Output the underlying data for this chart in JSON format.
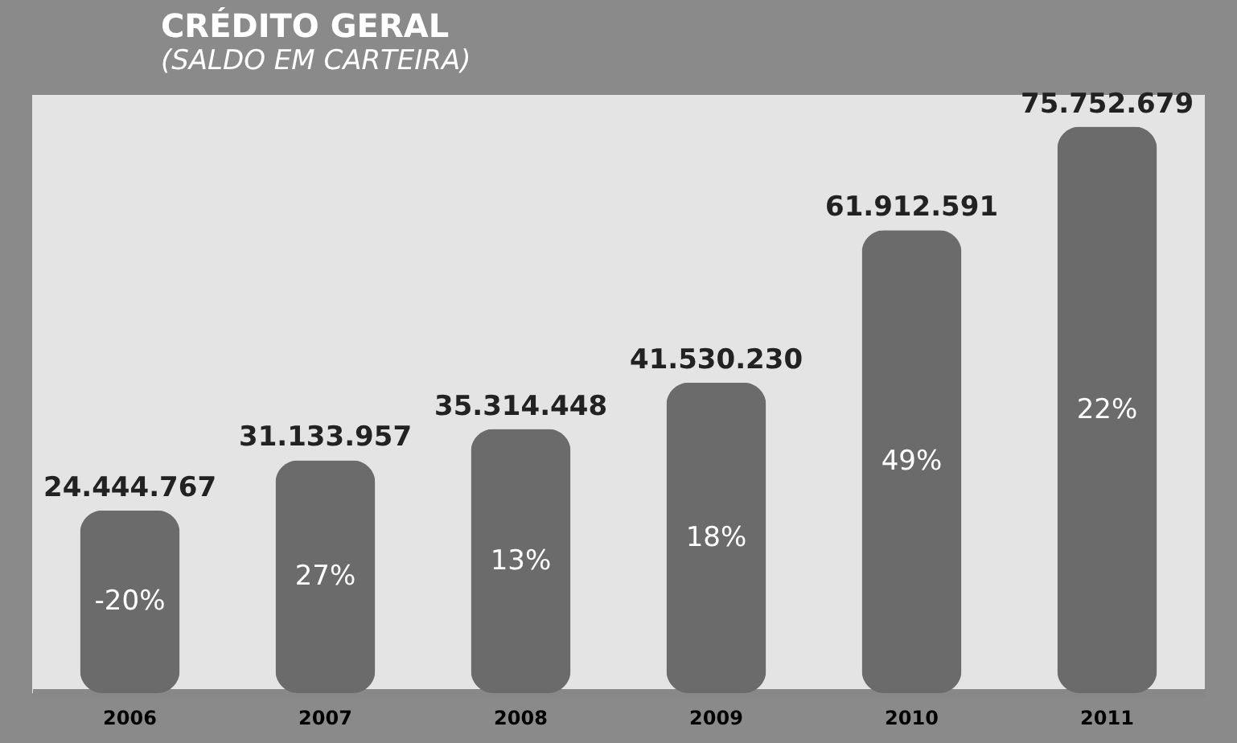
{
  "chart_data": {
    "type": "bar",
    "title": "CRÉDITO GERAL",
    "subtitle": "(SALDO EM CARTEIRA)",
    "categories": [
      "2006",
      "2007",
      "2008",
      "2009",
      "2010",
      "2011"
    ],
    "values": [
      24444767,
      31133957,
      35314448,
      41530230,
      61912591,
      75752679
    ],
    "value_labels": [
      "24.444.767",
      "31.133.957",
      "35.314.448",
      "41.530.230",
      "61.912.591",
      "75.752.679"
    ],
    "color": "#6b6b6b",
    "annotations": [
      "-20%",
      "27%",
      "13%",
      "18%",
      "49%",
      "22%"
    ]
  }
}
